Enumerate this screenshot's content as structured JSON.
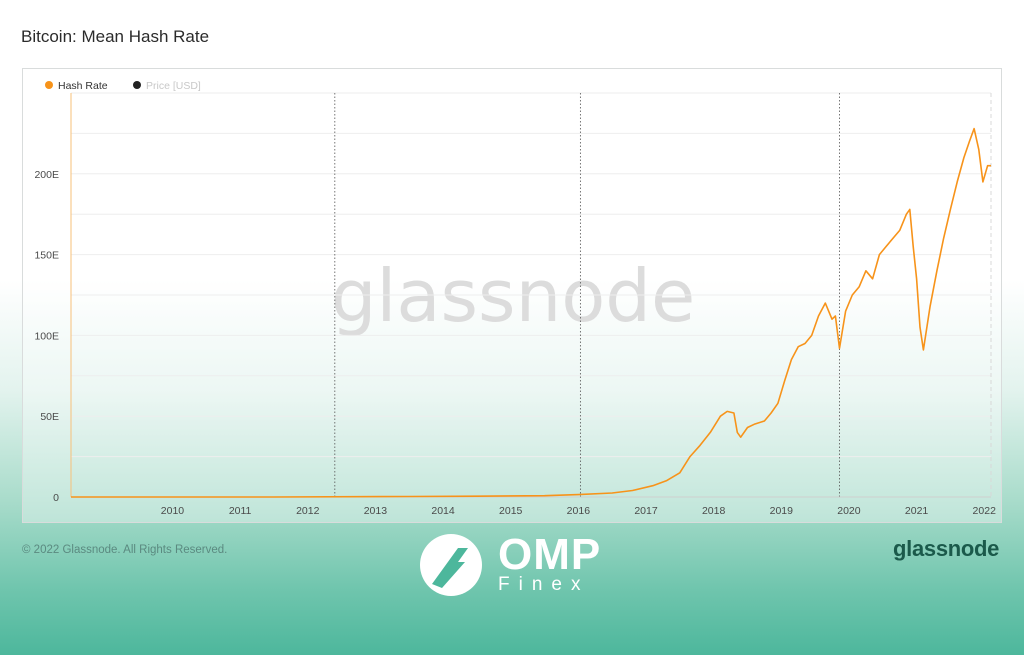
{
  "title": "Bitcoin: Mean Hash Rate",
  "legend": [
    {
      "label": "Hash Rate",
      "color": "#f7931a"
    },
    {
      "label": "Price [USD]",
      "color": "#222222"
    }
  ],
  "watermark": "glassnode",
  "footer": {
    "copyright": "© 2022 Glassnode. All Rights Reserved.",
    "brand": "glassnode"
  },
  "overlay_logo": {
    "name": "OMP",
    "sub": "Finex",
    "icon": "omp-slash-circle-icon"
  },
  "chart_data": {
    "type": "line",
    "title": "Bitcoin: Mean Hash Rate",
    "xlabel": "",
    "ylabel": "",
    "x_ticks": [
      "2010",
      "2011",
      "2012",
      "2013",
      "2014",
      "2015",
      "2016",
      "2017",
      "2018",
      "2019",
      "2020",
      "2021",
      "2022"
    ],
    "y_ticks": [
      "0",
      "50E",
      "100E",
      "150E",
      "200E"
    ],
    "ylim": [
      0,
      250
    ],
    "xlim": [
      2009.0,
      2022.6
    ],
    "grid": true,
    "legend_position": "top-left",
    "halving_lines": [
      2012.9,
      2016.53,
      2020.36
    ],
    "series": [
      {
        "name": "Hash Rate",
        "unit": "EH/s",
        "color": "#f7931a",
        "x": [
          2009.0,
          2012.0,
          2014.0,
          2015.0,
          2016.0,
          2016.5,
          2017.0,
          2017.3,
          2017.6,
          2017.8,
          2018.0,
          2018.15,
          2018.3,
          2018.45,
          2018.6,
          2018.7,
          2018.8,
          2018.85,
          2018.9,
          2019.0,
          2019.1,
          2019.25,
          2019.35,
          2019.45,
          2019.55,
          2019.65,
          2019.75,
          2019.85,
          2019.95,
          2020.05,
          2020.15,
          2020.25,
          2020.3,
          2020.36,
          2020.45,
          2020.55,
          2020.65,
          2020.75,
          2020.85,
          2020.95,
          2021.05,
          2021.15,
          2021.25,
          2021.35,
          2021.4,
          2021.45,
          2021.5,
          2021.55,
          2021.6,
          2021.7,
          2021.8,
          2021.9,
          2022.0,
          2022.1,
          2022.2,
          2022.28,
          2022.35,
          2022.42,
          2022.48,
          2022.55,
          2022.6
        ],
        "y": [
          0,
          0,
          0.3,
          0.5,
          0.8,
          1.5,
          2.5,
          4,
          7,
          10,
          15,
          25,
          32,
          40,
          50,
          53,
          52,
          40,
          37,
          43,
          45,
          47,
          52,
          58,
          72,
          85,
          93,
          95,
          100,
          112,
          120,
          110,
          112,
          92,
          115,
          125,
          130,
          140,
          135,
          150,
          155,
          160,
          165,
          175,
          178,
          155,
          135,
          105,
          91,
          118,
          140,
          160,
          178,
          195,
          210,
          220,
          228,
          215,
          195,
          205,
          205
        ]
      }
    ]
  }
}
